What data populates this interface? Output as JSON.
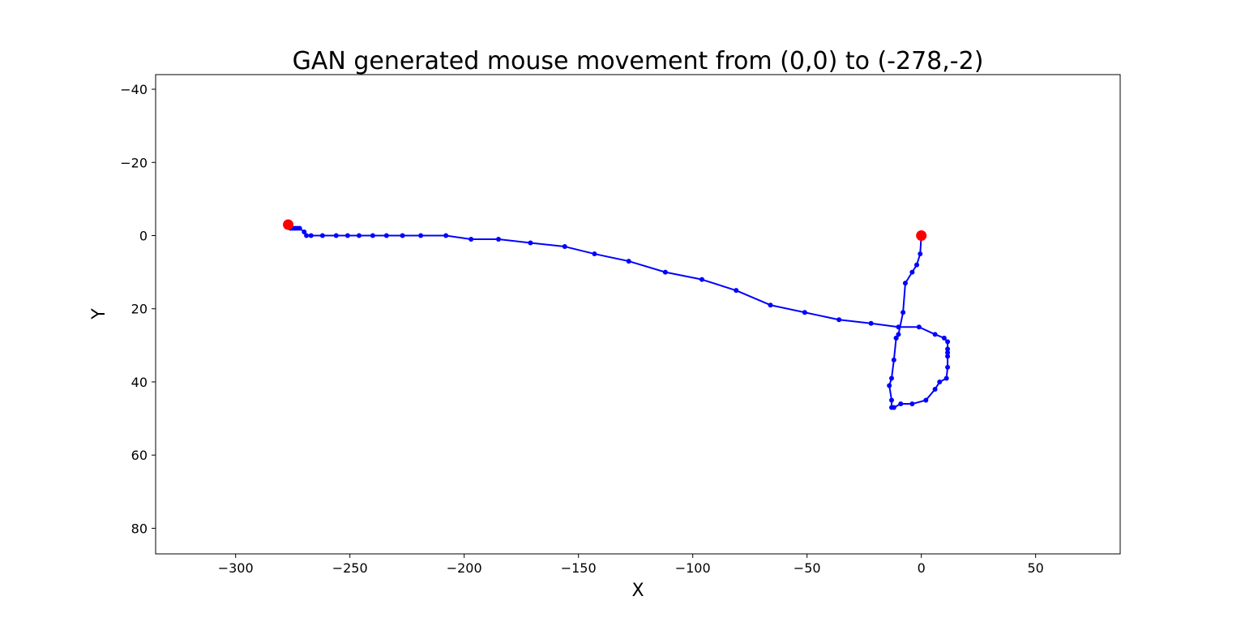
{
  "chart_data": {
    "type": "line",
    "title": "GAN generated mouse movement from (0,0) to (-278,-2)",
    "xlabel": "X",
    "ylabel": "Y",
    "xlim": [
      -335,
      87
    ],
    "ylim": [
      -44,
      87
    ],
    "y_inverted": true,
    "grid": false,
    "x_ticks": [
      -300,
      -250,
      -200,
      -150,
      -100,
      -50,
      0,
      50
    ],
    "x_tick_labels": [
      "−300",
      "−250",
      "−200",
      "−150",
      "−100",
      "−50",
      "0",
      "50"
    ],
    "y_ticks": [
      -40,
      -20,
      0,
      20,
      40,
      60,
      80
    ],
    "y_tick_labels": [
      "−40",
      "−20",
      "0",
      "20",
      "40",
      "60",
      "80"
    ],
    "series": [
      {
        "color": "#0000ff",
        "marker": "circle",
        "x": [
          0,
          -0.5,
          -2,
          -4,
          -7,
          -8,
          -10,
          -11,
          -11,
          -12,
          -13,
          -14,
          -13,
          -13,
          -12,
          -9,
          -4,
          2,
          6,
          8,
          11,
          11.5,
          11.5,
          11.5,
          11.5,
          11.5,
          10,
          6,
          -1,
          -10,
          -22,
          -36,
          -51,
          -66,
          -81,
          -96,
          -112,
          -128,
          -143,
          -156,
          -171,
          -185,
          -197,
          -208,
          -219,
          -227,
          -234,
          -240,
          -246,
          -251,
          -256,
          -262,
          -267,
          -269,
          -270,
          -272,
          -273,
          -274,
          -275,
          -276,
          -277
        ],
        "y": [
          0,
          5,
          8,
          10,
          13,
          21,
          27,
          28,
          28,
          34,
          39,
          41,
          45,
          47,
          47,
          46,
          46,
          45,
          42,
          40,
          39,
          36,
          33,
          32,
          31,
          29,
          28,
          27,
          25,
          25,
          24,
          23,
          21,
          19,
          15,
          12,
          10,
          7,
          5,
          3,
          2,
          1,
          1,
          0,
          0,
          0,
          0,
          0,
          0,
          0,
          0,
          0,
          0,
          0,
          -1,
          -2,
          -2,
          -2,
          -2,
          -2,
          -3
        ]
      }
    ],
    "endpoints": {
      "color": "#ff0000",
      "x": [
        0,
        -277
      ],
      "y": [
        0,
        -3
      ]
    }
  }
}
